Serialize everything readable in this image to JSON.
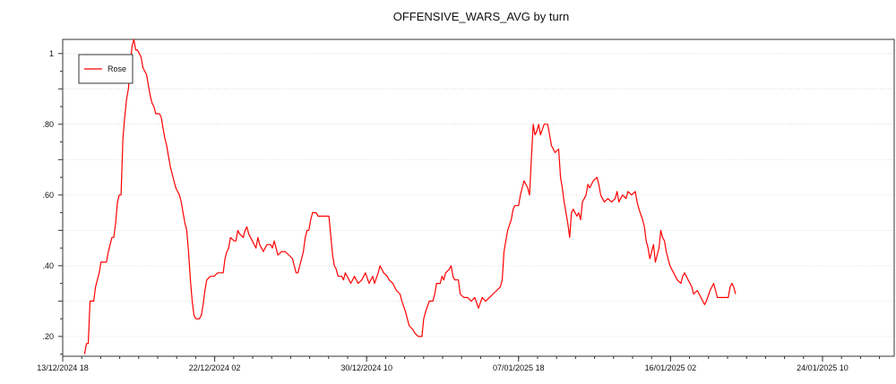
{
  "chart_data": {
    "type": "line",
    "title": "OFFENSIVE_WARS_AVG by turn",
    "xlabel": "",
    "ylabel": "",
    "ylim": [
      0.144,
      1.04
    ],
    "yticks": [
      {
        "value": 0.2,
        "label": ".20"
      },
      {
        "value": 0.4,
        "label": ".40"
      },
      {
        "value": 0.6,
        "label": ".60"
      },
      {
        "value": 0.8,
        "label": ".80"
      },
      {
        "value": 1.0,
        "label": "1"
      }
    ],
    "xlim": [
      0,
      45.6
    ],
    "xticks": [
      {
        "value": 0,
        "label": "13/12/2024 18"
      },
      {
        "value": 8.3333,
        "label": "22/12/2024 02"
      },
      {
        "value": 16.6667,
        "label": "30/12/2024 10"
      },
      {
        "value": 25,
        "label": "07/01/2025 18"
      },
      {
        "value": 33.3333,
        "label": "16/01/2025 02"
      },
      {
        "value": 41.6667,
        "label": "24/01/2025 10"
      }
    ],
    "minor_x_step": 1.0417,
    "grid": true,
    "legend": {
      "position": "top-left"
    },
    "series": [
      {
        "name": "Rose",
        "color": "#ff0000",
        "points": [
          [
            1.2,
            0.15
          ],
          [
            1.3,
            0.18
          ],
          [
            1.4,
            0.18
          ],
          [
            1.5,
            0.3
          ],
          [
            1.7,
            0.3
          ],
          [
            1.8,
            0.34
          ],
          [
            2.0,
            0.38
          ],
          [
            2.1,
            0.41
          ],
          [
            2.4,
            0.41
          ],
          [
            2.5,
            0.44
          ],
          [
            2.7,
            0.48
          ],
          [
            2.8,
            0.48
          ],
          [
            2.9,
            0.52
          ],
          [
            3.0,
            0.58
          ],
          [
            3.1,
            0.6
          ],
          [
            3.2,
            0.6
          ],
          [
            3.3,
            0.76
          ],
          [
            3.4,
            0.82
          ],
          [
            3.5,
            0.87
          ],
          [
            3.6,
            0.9
          ],
          [
            3.7,
            0.96
          ],
          [
            3.8,
            1.02
          ],
          [
            3.9,
            1.04
          ],
          [
            4.0,
            1.01
          ],
          [
            4.1,
            1.01
          ],
          [
            4.2,
            1.0
          ],
          [
            4.3,
            0.99
          ],
          [
            4.4,
            0.96
          ],
          [
            4.6,
            0.94
          ],
          [
            4.7,
            0.91
          ],
          [
            4.8,
            0.88
          ],
          [
            4.9,
            0.86
          ],
          [
            5.0,
            0.85
          ],
          [
            5.1,
            0.83
          ],
          [
            5.3,
            0.83
          ],
          [
            5.4,
            0.82
          ],
          [
            5.5,
            0.79
          ],
          [
            5.6,
            0.76
          ],
          [
            5.7,
            0.74
          ],
          [
            5.8,
            0.71
          ],
          [
            5.9,
            0.68
          ],
          [
            6.0,
            0.66
          ],
          [
            6.1,
            0.64
          ],
          [
            6.2,
            0.62
          ],
          [
            6.4,
            0.6
          ],
          [
            6.5,
            0.58
          ],
          [
            6.6,
            0.55
          ],
          [
            6.7,
            0.52
          ],
          [
            6.8,
            0.5
          ],
          [
            6.9,
            0.44
          ],
          [
            7.0,
            0.36
          ],
          [
            7.1,
            0.3
          ],
          [
            7.2,
            0.26
          ],
          [
            7.3,
            0.25
          ],
          [
            7.5,
            0.25
          ],
          [
            7.6,
            0.26
          ],
          [
            7.7,
            0.29
          ],
          [
            7.8,
            0.33
          ],
          [
            7.9,
            0.36
          ],
          [
            8.1,
            0.37
          ],
          [
            8.3,
            0.37
          ],
          [
            8.5,
            0.38
          ],
          [
            8.8,
            0.38
          ],
          [
            8.9,
            0.42
          ],
          [
            9.0,
            0.44
          ],
          [
            9.1,
            0.45
          ],
          [
            9.2,
            0.48
          ],
          [
            9.4,
            0.47
          ],
          [
            9.5,
            0.47
          ],
          [
            9.6,
            0.5
          ],
          [
            9.7,
            0.49
          ],
          [
            9.9,
            0.48
          ],
          [
            10.0,
            0.5
          ],
          [
            10.1,
            0.51
          ],
          [
            10.2,
            0.49
          ],
          [
            10.4,
            0.47
          ],
          [
            10.6,
            0.45
          ],
          [
            10.7,
            0.48
          ],
          [
            10.8,
            0.46
          ],
          [
            11.0,
            0.44
          ],
          [
            11.2,
            0.46
          ],
          [
            11.4,
            0.46
          ],
          [
            11.5,
            0.45
          ],
          [
            11.6,
            0.47
          ],
          [
            11.8,
            0.43
          ],
          [
            12.0,
            0.44
          ],
          [
            12.2,
            0.44
          ],
          [
            12.4,
            0.43
          ],
          [
            12.6,
            0.42
          ],
          [
            12.8,
            0.38
          ],
          [
            12.9,
            0.38
          ],
          [
            13.1,
            0.42
          ],
          [
            13.2,
            0.44
          ],
          [
            13.3,
            0.48
          ],
          [
            13.4,
            0.5
          ],
          [
            13.5,
            0.5
          ],
          [
            13.6,
            0.53
          ],
          [
            13.7,
            0.55
          ],
          [
            13.9,
            0.55
          ],
          [
            14.0,
            0.54
          ],
          [
            14.1,
            0.54
          ],
          [
            14.3,
            0.54
          ],
          [
            14.5,
            0.54
          ],
          [
            14.6,
            0.54
          ],
          [
            14.8,
            0.43
          ],
          [
            14.9,
            0.4
          ],
          [
            15.0,
            0.39
          ],
          [
            15.1,
            0.37
          ],
          [
            15.3,
            0.37
          ],
          [
            15.4,
            0.36
          ],
          [
            15.5,
            0.38
          ],
          [
            15.6,
            0.37
          ],
          [
            15.8,
            0.35
          ],
          [
            16.0,
            0.37
          ],
          [
            16.2,
            0.35
          ],
          [
            16.4,
            0.36
          ],
          [
            16.6,
            0.38
          ],
          [
            16.8,
            0.35
          ],
          [
            17.0,
            0.37
          ],
          [
            17.1,
            0.35
          ],
          [
            17.3,
            0.38
          ],
          [
            17.4,
            0.4
          ],
          [
            17.6,
            0.38
          ],
          [
            17.8,
            0.37
          ],
          [
            17.9,
            0.36
          ],
          [
            18.1,
            0.35
          ],
          [
            18.3,
            0.33
          ],
          [
            18.5,
            0.32
          ],
          [
            18.6,
            0.3
          ],
          [
            18.8,
            0.27
          ],
          [
            18.9,
            0.25
          ],
          [
            19.0,
            0.23
          ],
          [
            19.2,
            0.22
          ],
          [
            19.3,
            0.21
          ],
          [
            19.5,
            0.2
          ],
          [
            19.7,
            0.2
          ],
          [
            19.8,
            0.25
          ],
          [
            19.9,
            0.27
          ],
          [
            20.1,
            0.3
          ],
          [
            20.3,
            0.3
          ],
          [
            20.4,
            0.32
          ],
          [
            20.5,
            0.35
          ],
          [
            20.7,
            0.35
          ],
          [
            20.8,
            0.37
          ],
          [
            20.9,
            0.36
          ],
          [
            21.0,
            0.38
          ],
          [
            21.2,
            0.39
          ],
          [
            21.3,
            0.4
          ],
          [
            21.4,
            0.37
          ],
          [
            21.5,
            0.36
          ],
          [
            21.7,
            0.36
          ],
          [
            21.8,
            0.32
          ],
          [
            22.0,
            0.31
          ],
          [
            22.2,
            0.31
          ],
          [
            22.4,
            0.3
          ],
          [
            22.6,
            0.31
          ],
          [
            22.8,
            0.28
          ],
          [
            23.0,
            0.31
          ],
          [
            23.2,
            0.3
          ],
          [
            23.4,
            0.31
          ],
          [
            23.6,
            0.32
          ],
          [
            23.8,
            0.33
          ],
          [
            24.0,
            0.34
          ],
          [
            24.1,
            0.36
          ],
          [
            24.2,
            0.44
          ],
          [
            24.3,
            0.47
          ],
          [
            24.4,
            0.5
          ],
          [
            24.6,
            0.53
          ],
          [
            24.7,
            0.56
          ],
          [
            24.8,
            0.57
          ],
          [
            25.0,
            0.57
          ],
          [
            25.1,
            0.6
          ],
          [
            25.2,
            0.62
          ],
          [
            25.3,
            0.64
          ],
          [
            25.5,
            0.62
          ],
          [
            25.6,
            0.6
          ],
          [
            25.7,
            0.7
          ],
          [
            25.8,
            0.8
          ],
          [
            25.9,
            0.77
          ],
          [
            26.0,
            0.78
          ],
          [
            26.1,
            0.8
          ],
          [
            26.2,
            0.77
          ],
          [
            26.4,
            0.8
          ],
          [
            26.6,
            0.8
          ],
          [
            26.7,
            0.77
          ],
          [
            26.8,
            0.74
          ],
          [
            27.0,
            0.72
          ],
          [
            27.2,
            0.73
          ],
          [
            27.3,
            0.65
          ],
          [
            27.4,
            0.62
          ],
          [
            27.5,
            0.58
          ],
          [
            27.7,
            0.52
          ],
          [
            27.8,
            0.48
          ],
          [
            27.9,
            0.55
          ],
          [
            28.0,
            0.56
          ],
          [
            28.2,
            0.54
          ],
          [
            28.3,
            0.55
          ],
          [
            28.4,
            0.53
          ],
          [
            28.5,
            0.58
          ],
          [
            28.7,
            0.6
          ],
          [
            28.8,
            0.63
          ],
          [
            28.9,
            0.62
          ],
          [
            29.1,
            0.64
          ],
          [
            29.3,
            0.65
          ],
          [
            29.4,
            0.63
          ],
          [
            29.5,
            0.6
          ],
          [
            29.7,
            0.58
          ],
          [
            29.9,
            0.59
          ],
          [
            30.1,
            0.58
          ],
          [
            30.3,
            0.59
          ],
          [
            30.4,
            0.61
          ],
          [
            30.5,
            0.58
          ],
          [
            30.7,
            0.6
          ],
          [
            30.9,
            0.59
          ],
          [
            31.0,
            0.61
          ],
          [
            31.2,
            0.6
          ],
          [
            31.4,
            0.61
          ],
          [
            31.5,
            0.58
          ],
          [
            31.6,
            0.56
          ],
          [
            31.8,
            0.53
          ],
          [
            31.9,
            0.51
          ],
          [
            32.0,
            0.47
          ],
          [
            32.1,
            0.45
          ],
          [
            32.2,
            0.42
          ],
          [
            32.3,
            0.44
          ],
          [
            32.4,
            0.46
          ],
          [
            32.5,
            0.41
          ],
          [
            32.6,
            0.43
          ],
          [
            32.7,
            0.45
          ],
          [
            32.8,
            0.5
          ],
          [
            32.9,
            0.48
          ],
          [
            33.0,
            0.47
          ],
          [
            33.1,
            0.44
          ],
          [
            33.2,
            0.42
          ],
          [
            33.3,
            0.4
          ],
          [
            33.5,
            0.38
          ],
          [
            33.6,
            0.37
          ],
          [
            33.7,
            0.36
          ],
          [
            33.9,
            0.35
          ],
          [
            34.0,
            0.37
          ],
          [
            34.1,
            0.38
          ],
          [
            34.3,
            0.36
          ],
          [
            34.5,
            0.34
          ],
          [
            34.6,
            0.32
          ],
          [
            34.8,
            0.33
          ],
          [
            35.0,
            0.31
          ],
          [
            35.2,
            0.29
          ],
          [
            35.3,
            0.3
          ],
          [
            35.5,
            0.33
          ],
          [
            35.7,
            0.35
          ],
          [
            35.8,
            0.33
          ],
          [
            35.9,
            0.31
          ],
          [
            36.1,
            0.31
          ],
          [
            36.3,
            0.31
          ],
          [
            36.5,
            0.31
          ],
          [
            36.6,
            0.34
          ],
          [
            36.7,
            0.35
          ],
          [
            36.8,
            0.34
          ],
          [
            36.9,
            0.32
          ]
        ]
      }
    ]
  }
}
